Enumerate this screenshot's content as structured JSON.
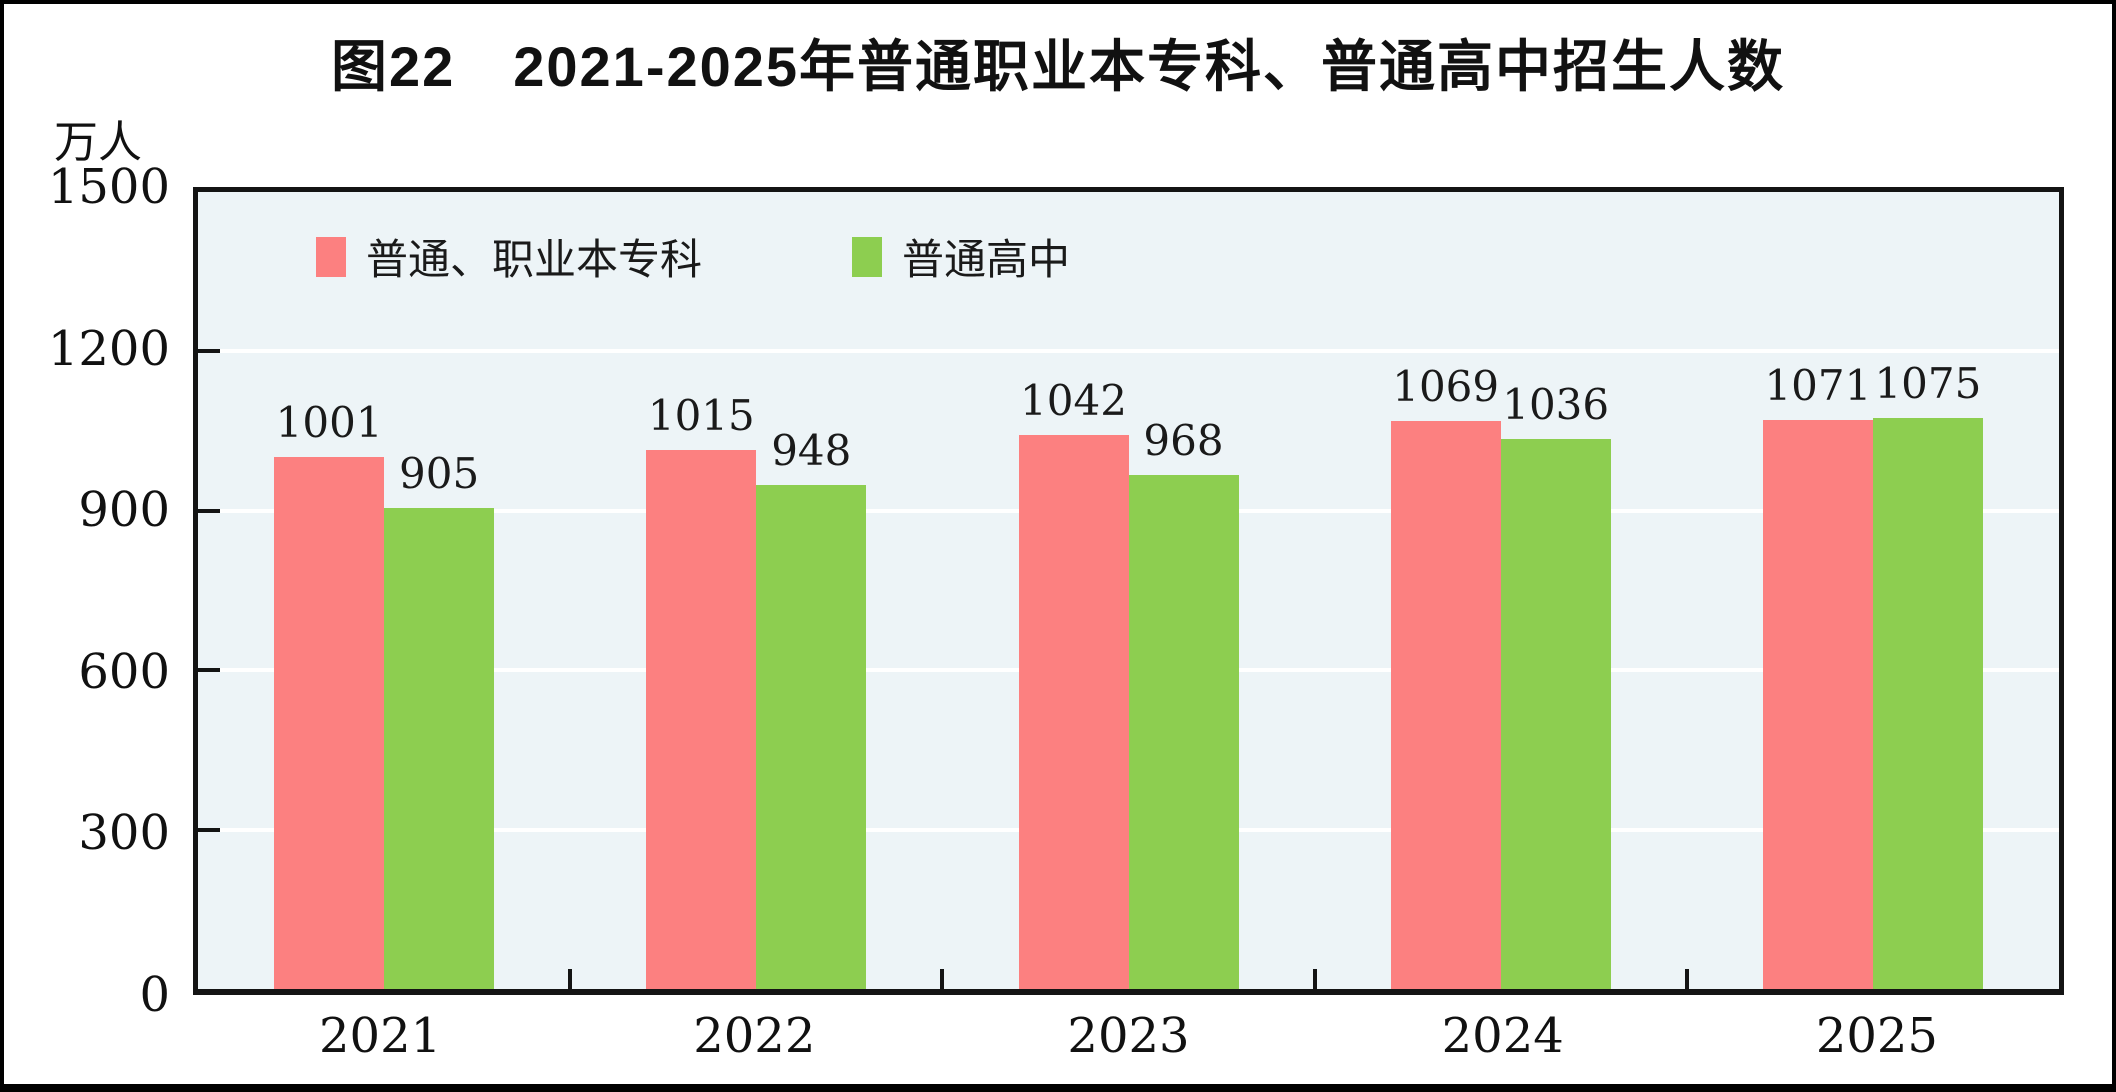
{
  "figure": {
    "title": "图22　2021-2025年普通职业本专科、普通高中招生人数",
    "unit_label": "万人"
  },
  "chart_data": {
    "type": "bar",
    "title": "图22　2021-2025年普通职业本专科、普通高中招生人数",
    "unit": "万人",
    "categories": [
      "2021",
      "2022",
      "2023",
      "2024",
      "2025"
    ],
    "series": [
      {
        "name": "普通、职业本专科",
        "color": "#FC8080",
        "values": [
          1001,
          1015,
          1042,
          1069,
          1071
        ]
      },
      {
        "name": "普通高中",
        "color": "#8DCE50",
        "values": [
          905,
          948,
          968,
          1036,
          1075
        ]
      }
    ],
    "ylim": [
      0,
      1500
    ],
    "yticks": [
      0,
      300,
      600,
      900,
      1200,
      1500
    ],
    "grid": true,
    "gridline_color": "#FFFFFF",
    "plot_bg": "#EDF4F7",
    "legend_position": "top-left-inside",
    "value_labels_shown": true
  }
}
